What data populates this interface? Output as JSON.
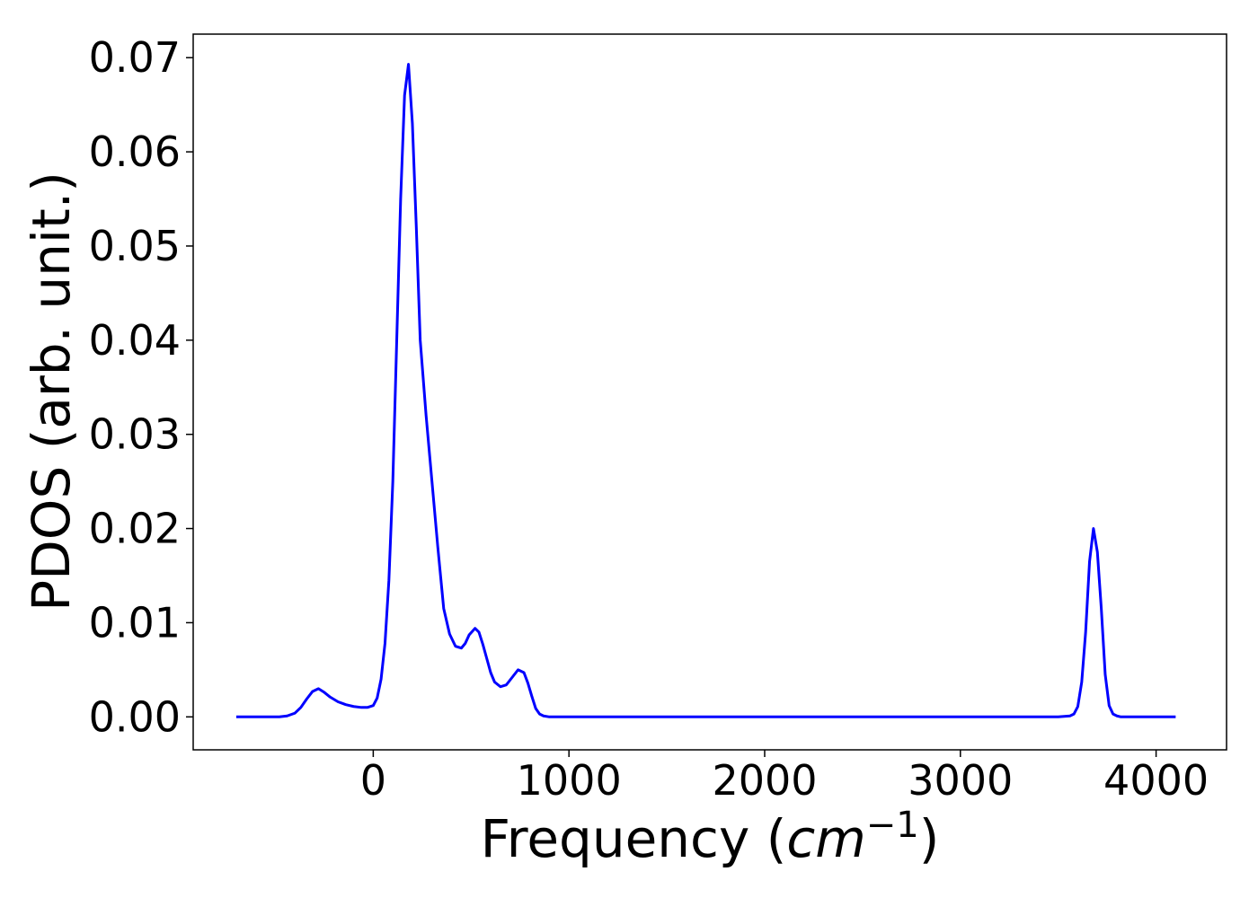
{
  "chart_data": {
    "type": "line",
    "title": "",
    "xlabel_prefix": "Frequency (",
    "xlabel_math": "cm",
    "xlabel_sup": "−1",
    "xlabel_suffix": ")",
    "ylabel": "PDOS (arb. unit.)",
    "xlim": [
      -920,
      4360
    ],
    "ylim": [
      -0.0035,
      0.0725
    ],
    "xticks": [
      0,
      1000,
      2000,
      3000,
      4000
    ],
    "xtick_labels": [
      "0",
      "1000",
      "2000",
      "3000",
      "4000"
    ],
    "yticks": [
      0.0,
      0.01,
      0.02,
      0.03,
      0.04,
      0.05,
      0.06,
      0.07
    ],
    "ytick_labels": [
      "0.00",
      "0.01",
      "0.02",
      "0.03",
      "0.04",
      "0.05",
      "0.06",
      "0.07"
    ],
    "grid": false,
    "line_color": "#0000ff",
    "series": [
      {
        "x": [
          -700,
          -480,
          -440,
          -400,
          -370,
          -340,
          -310,
          -280,
          -250,
          -220,
          -180,
          -140,
          -100,
          -60,
          -30,
          0,
          20,
          40,
          60,
          80,
          100,
          120,
          140,
          160,
          180,
          200,
          220,
          240,
          270,
          300,
          330,
          360,
          390,
          420,
          450,
          470,
          490,
          520,
          540,
          560,
          580,
          600,
          620,
          650,
          680,
          710,
          740,
          770,
          790,
          810,
          830,
          850,
          870,
          900,
          1000,
          1500,
          2000,
          2500,
          3000,
          3500,
          3560,
          3580,
          3600,
          3620,
          3640,
          3660,
          3680,
          3700,
          3720,
          3740,
          3760,
          3780,
          3800,
          3820,
          3850,
          3900,
          4000,
          4100
        ],
        "y": [
          0.0,
          0.0,
          0.0001,
          0.0004,
          0.001,
          0.0019,
          0.0027,
          0.003,
          0.0026,
          0.0021,
          0.0016,
          0.0013,
          0.0011,
          0.001,
          0.001,
          0.0012,
          0.002,
          0.004,
          0.0078,
          0.0145,
          0.025,
          0.04,
          0.055,
          0.066,
          0.0693,
          0.063,
          0.052,
          0.04,
          0.032,
          0.025,
          0.018,
          0.0115,
          0.0088,
          0.0075,
          0.0073,
          0.0078,
          0.0087,
          0.0094,
          0.009,
          0.0077,
          0.0062,
          0.0047,
          0.0037,
          0.0032,
          0.0034,
          0.0042,
          0.005,
          0.0047,
          0.0036,
          0.0022,
          0.0009,
          0.0003,
          0.0001,
          0.0,
          0.0,
          0.0,
          0.0,
          0.0,
          0.0,
          0.0,
          0.0001,
          0.0003,
          0.0011,
          0.0037,
          0.009,
          0.0165,
          0.02,
          0.0175,
          0.0115,
          0.0045,
          0.0012,
          0.0003,
          0.0001,
          0.0,
          0.0,
          0.0,
          0.0,
          0.0
        ]
      }
    ]
  }
}
